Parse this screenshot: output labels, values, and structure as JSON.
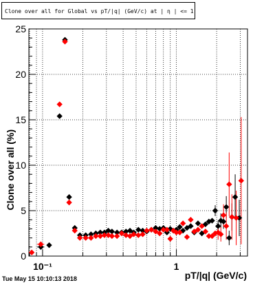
{
  "chart_data": {
    "type": "scatter",
    "title": "Clone  over all for Global vs pT/|q| (GeV/c) at |  η | <= 1.0",
    "xlabel": "pT/|q| (GeV/c)",
    "ylabel": "Clone  over all (%)",
    "x_scale": "log",
    "xlim": [
      0.079,
      3.4
    ],
    "ylim": [
      0,
      25
    ],
    "x_tick_labels": [
      {
        "value": 0.1,
        "label": "10⁻¹"
      },
      {
        "value": 1,
        "label": "1"
      }
    ],
    "y_tick_labels": [
      {
        "value": 0,
        "label": "0"
      },
      {
        "value": 5,
        "label": "5"
      },
      {
        "value": 10,
        "label": "10"
      },
      {
        "value": 15,
        "label": "15"
      },
      {
        "value": 20,
        "label": "20"
      },
      {
        "value": 25,
        "label": "25"
      }
    ],
    "grid": true,
    "series": [
      {
        "color": "#000000",
        "marker": "diamond",
        "points": [
          {
            "x": 0.097,
            "y": 1.0,
            "xerr": 0.006
          },
          {
            "x": 0.112,
            "y": 1.2
          },
          {
            "x": 0.134,
            "y": 15.4,
            "xerr": 0.004
          },
          {
            "x": 0.147,
            "y": 23.8
          },
          {
            "x": 0.158,
            "y": 6.5
          },
          {
            "x": 0.174,
            "y": 3.1
          },
          {
            "x": 0.19,
            "y": 2.3
          },
          {
            "x": 0.21,
            "y": 2.3
          },
          {
            "x": 0.23,
            "y": 2.4
          },
          {
            "x": 0.25,
            "y": 2.5
          },
          {
            "x": 0.27,
            "y": 2.6
          },
          {
            "x": 0.29,
            "y": 2.6
          },
          {
            "x": 0.31,
            "y": 2.8
          },
          {
            "x": 0.33,
            "y": 2.7
          },
          {
            "x": 0.36,
            "y": 2.6
          },
          {
            "x": 0.39,
            "y": 2.6
          },
          {
            "x": 0.42,
            "y": 2.7
          },
          {
            "x": 0.45,
            "y": 2.8
          },
          {
            "x": 0.48,
            "y": 2.6
          },
          {
            "x": 0.52,
            "y": 2.9
          },
          {
            "x": 0.56,
            "y": 2.8
          },
          {
            "x": 0.6,
            "y": 2.7
          },
          {
            "x": 0.65,
            "y": 2.9
          },
          {
            "x": 0.7,
            "y": 3.1
          },
          {
            "x": 0.75,
            "y": 3.0
          },
          {
            "x": 0.8,
            "y": 3.1
          },
          {
            "x": 0.85,
            "y": 2.6
          },
          {
            "x": 0.9,
            "y": 3.0
          },
          {
            "x": 0.95,
            "y": 2.8
          },
          {
            "x": 1.0,
            "y": 2.9
          },
          {
            "x": 1.06,
            "y": 3.2
          },
          {
            "x": 1.12,
            "y": 2.8
          },
          {
            "x": 1.2,
            "y": 3.1
          },
          {
            "x": 1.28,
            "y": 3.3
          },
          {
            "x": 1.36,
            "y": 2.6
          },
          {
            "x": 1.45,
            "y": 3.6
          },
          {
            "x": 1.55,
            "y": 2.5
          },
          {
            "x": 1.65,
            "y": 3.5
          },
          {
            "x": 1.75,
            "y": 3.8
          },
          {
            "x": 1.85,
            "y": 3.9
          },
          {
            "x": 1.95,
            "y": 5.0,
            "yerr": 0.6
          },
          {
            "x": 2.05,
            "y": 3.3,
            "yerr": 0.6
          },
          {
            "x": 2.15,
            "y": 3.9,
            "yerr": 0.8
          },
          {
            "x": 2.25,
            "y": 3.8,
            "yerr": 0.8
          },
          {
            "x": 2.36,
            "y": 5.4,
            "yerr": 1.2
          },
          {
            "x": 2.48,
            "y": 2.0,
            "yerr": 0.8
          },
          {
            "x": 2.6,
            "y": 4.3,
            "yerr": 1.5
          },
          {
            "x": 2.75,
            "y": 6.5,
            "yerr": 2.5
          },
          {
            "x": 2.95,
            "y": 4.2,
            "yerr": 2.0
          }
        ]
      },
      {
        "color": "#ff0000",
        "marker": "diamond",
        "points": [
          {
            "x": 0.083,
            "y": 0.4,
            "xerr": 0.003
          },
          {
            "x": 0.097,
            "y": 1.3,
            "xerr": 0.006
          },
          {
            "x": 0.134,
            "y": 16.7,
            "xerr": 0.004
          },
          {
            "x": 0.147,
            "y": 23.6
          },
          {
            "x": 0.158,
            "y": 5.9
          },
          {
            "x": 0.174,
            "y": 2.8
          },
          {
            "x": 0.19,
            "y": 2.0
          },
          {
            "x": 0.21,
            "y": 2.0
          },
          {
            "x": 0.23,
            "y": 2.0
          },
          {
            "x": 0.25,
            "y": 2.2
          },
          {
            "x": 0.27,
            "y": 2.2
          },
          {
            "x": 0.29,
            "y": 2.3
          },
          {
            "x": 0.31,
            "y": 2.3
          },
          {
            "x": 0.33,
            "y": 2.2
          },
          {
            "x": 0.36,
            "y": 2.2
          },
          {
            "x": 0.39,
            "y": 2.5
          },
          {
            "x": 0.42,
            "y": 2.3
          },
          {
            "x": 0.45,
            "y": 2.2
          },
          {
            "x": 0.48,
            "y": 2.4
          },
          {
            "x": 0.52,
            "y": 2.3
          },
          {
            "x": 0.56,
            "y": 2.4
          },
          {
            "x": 0.6,
            "y": 2.8
          },
          {
            "x": 0.65,
            "y": 2.9
          },
          {
            "x": 0.7,
            "y": 2.7
          },
          {
            "x": 0.75,
            "y": 2.5
          },
          {
            "x": 0.8,
            "y": 2.9
          },
          {
            "x": 0.85,
            "y": 2.9
          },
          {
            "x": 0.9,
            "y": 1.9
          },
          {
            "x": 0.95,
            "y": 2.8
          },
          {
            "x": 1.0,
            "y": 2.6
          },
          {
            "x": 1.06,
            "y": 2.6
          },
          {
            "x": 1.12,
            "y": 3.6
          },
          {
            "x": 1.2,
            "y": 2.1
          },
          {
            "x": 1.28,
            "y": 4.0
          },
          {
            "x": 1.36,
            "y": 2.7
          },
          {
            "x": 1.45,
            "y": 2.9
          },
          {
            "x": 1.55,
            "y": 3.3
          },
          {
            "x": 1.65,
            "y": 2.7
          },
          {
            "x": 1.75,
            "y": 2.2
          },
          {
            "x": 1.85,
            "y": 2.2
          },
          {
            "x": 1.95,
            "y": 2.5
          },
          {
            "x": 2.05,
            "y": 2.6,
            "yerr": 0.8
          },
          {
            "x": 2.15,
            "y": 2.4,
            "yerr": 0.8
          },
          {
            "x": 2.25,
            "y": 4.5,
            "yerr": 1.2
          },
          {
            "x": 2.36,
            "y": 3.3,
            "yerr": 1.5
          },
          {
            "x": 2.48,
            "y": 7.9,
            "yerr": 3.5
          },
          {
            "x": 2.6,
            "y": 4.3,
            "yerr": 2.5
          },
          {
            "x": 2.8,
            "y": 4.2,
            "yerr": 3.0
          },
          {
            "x": 3.05,
            "y": 8.3,
            "yerr": 7.0
          }
        ]
      }
    ]
  },
  "footer": {
    "timestamp": "Tue May 15 10:10:13 2018"
  }
}
